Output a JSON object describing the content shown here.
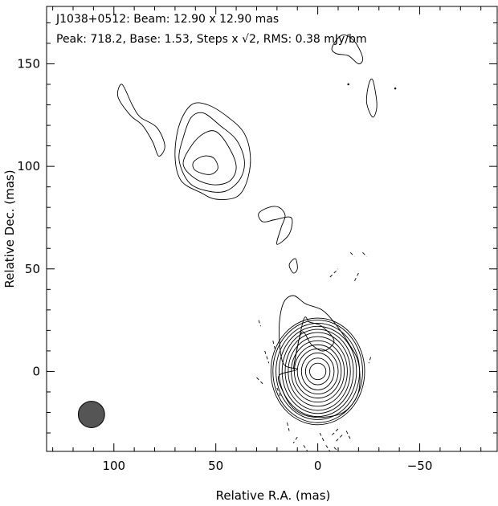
{
  "chart_data": {
    "type": "contour",
    "title_line1": "J1038+0512: Beam: 12.90 x 12.90 mas",
    "title_line2": "Peak: 718.2, Base: 1.53, Steps x √2, RMS: 0.38 mJy/bm",
    "xlabel": "Relative R.A. (mas)",
    "ylabel": "Relative Dec. (mas)",
    "x_axis_reversed": true,
    "xlim": [
      133,
      -88
    ],
    "ylim": [
      -39,
      178
    ],
    "x_ticks": [
      100,
      50,
      0,
      -50
    ],
    "x_tick_labels": [
      "100",
      "50",
      "0",
      "−50"
    ],
    "y_ticks": [
      0,
      50,
      100,
      150
    ],
    "y_tick_labels": [
      "0",
      "50",
      "100",
      "150"
    ],
    "x_minor_step": 10,
    "y_minor_step": 10,
    "peak_mJy_per_beam": 718.2,
    "base_contour_mJy_per_beam": 1.53,
    "contour_step_factor": "√2",
    "rms_mJy_per_beam": 0.38,
    "beam": {
      "major_mas": 12.9,
      "minor_mas": 12.9,
      "center_x_mas": 111,
      "center_y_mas": -21
    },
    "components": [
      {
        "name": "core",
        "center": [
          0,
          0
        ],
        "positive_levels": [
          {
            "rx": 4,
            "ry": 4
          },
          {
            "rx": 6,
            "ry": 6.5
          },
          {
            "rx": 8,
            "ry": 9
          },
          {
            "rx": 10,
            "ry": 11
          },
          {
            "rx": 11.5,
            "ry": 13
          },
          {
            "rx": 13,
            "ry": 15
          },
          {
            "rx": 14.5,
            "ry": 17
          },
          {
            "rx": 16,
            "ry": 19
          },
          {
            "rx": 17.5,
            "ry": 20.5
          },
          {
            "rx": 19,
            "ry": 22
          },
          {
            "rx": 20.5,
            "ry": 23.5
          },
          {
            "rx": 22,
            "ry": 25
          },
          {
            "rx": 23,
            "ry": 26
          }
        ],
        "extended_outline": [
          [
            10,
            1
          ],
          [
            17,
            4
          ],
          [
            19,
            20
          ],
          [
            17,
            33
          ],
          [
            12,
            37
          ],
          [
            6,
            33
          ],
          [
            -2,
            30
          ],
          [
            -8,
            24
          ],
          [
            -15,
            14
          ],
          [
            -20,
            4
          ],
          [
            -20,
            -10
          ],
          [
            -14,
            -19
          ],
          [
            -6,
            -22
          ],
          [
            4,
            -22
          ],
          [
            12,
            -18
          ],
          [
            17,
            -10
          ],
          [
            19,
            -2
          ]
        ],
        "inner_knot_outline": [
          [
            12,
            1
          ],
          [
            7,
            25
          ],
          [
            4,
            24
          ],
          [
            -2,
            22
          ],
          [
            -8,
            15
          ],
          [
            -3,
            10
          ],
          [
            3,
            13
          ],
          [
            8,
            19
          ]
        ]
      },
      {
        "name": "northern_lobe",
        "center": [
          53,
          102
        ],
        "outlines": [
          [
            [
              60,
              98
            ],
            [
              53,
              96
            ],
            [
              49,
              99
            ],
            [
              51,
              104
            ],
            [
              56,
              105
            ],
            [
              61,
              102
            ]
          ],
          [
            [
              66,
              101
            ],
            [
              60,
              94
            ],
            [
              51,
              91
            ],
            [
              43,
              93
            ],
            [
              40,
              100
            ],
            [
              44,
              110
            ],
            [
              50,
              117
            ],
            [
              56,
              116
            ],
            [
              62,
              110
            ]
          ],
          [
            [
              68,
              103
            ],
            [
              63,
              92
            ],
            [
              54,
              88
            ],
            [
              45,
              88
            ],
            [
              38,
              94
            ],
            [
              36,
              103
            ],
            [
              40,
              113
            ],
            [
              48,
              120
            ],
            [
              56,
              126
            ],
            [
              62,
              124
            ],
            [
              66,
              114
            ]
          ],
          [
            [
              70,
              105
            ],
            [
              67,
              93
            ],
            [
              57,
              87
            ],
            [
              50,
              84
            ],
            [
              40,
              85
            ],
            [
              35,
              92
            ],
            [
              33,
              104
            ],
            [
              36,
              116
            ],
            [
              44,
              124
            ],
            [
              54,
              130
            ],
            [
              62,
              130
            ],
            [
              68,
              120
            ]
          ]
        ]
      },
      {
        "name": "northwest_jet",
        "outlines": [
          [
            [
              96,
              140
            ],
            [
              91,
              130
            ],
            [
              87,
              124
            ],
            [
              79,
              119
            ],
            [
              75,
              110
            ],
            [
              78,
              105
            ],
            [
              81,
              112
            ],
            [
              86,
              120
            ],
            [
              92,
              125
            ],
            [
              98,
              134
            ]
          ]
        ]
      },
      {
        "name": "middle_knots",
        "outlines": [
          [
            [
              29,
              77
            ],
            [
              24,
              80
            ],
            [
              19,
              80
            ],
            [
              16,
              76
            ],
            [
              18,
              70
            ],
            [
              20,
              62
            ],
            [
              14,
              67
            ],
            [
              13,
              75
            ],
            [
              21,
              74
            ],
            [
              27,
              73
            ]
          ],
          [
            [
              11,
              55
            ],
            [
              10,
              50
            ],
            [
              12,
              48
            ],
            [
              14,
              52
            ]
          ]
        ]
      },
      {
        "name": "far_north",
        "outlines": [
          [
            [
              -7,
              158
            ],
            [
              -12,
              164
            ],
            [
              -18,
              161
            ],
            [
              -22,
              153
            ],
            [
              -20,
              150
            ],
            [
              -15,
              154
            ],
            [
              -9,
              155
            ]
          ],
          [
            [
              -27,
              142
            ],
            [
              -29,
              130
            ],
            [
              -27,
              124
            ],
            [
              -24,
              131
            ],
            [
              -25,
              140
            ]
          ]
        ],
        "dots": [
          [
            -15,
            140
          ],
          [
            -38,
            138
          ]
        ]
      }
    ],
    "negative_contours": [
      [
        [
          29,
          25
        ],
        [
          28,
          22
        ]
      ],
      [
        [
          26,
          10
        ],
        [
          24,
          4
        ]
      ],
      [
        [
          22,
          15
        ],
        [
          21,
          11
        ]
      ],
      [
        [
          30,
          -3
        ],
        [
          27,
          -6
        ]
      ],
      [
        [
          20,
          -8
        ],
        [
          18,
          -13
        ]
      ],
      [
        [
          -6,
          46
        ],
        [
          -10,
          50
        ]
      ],
      [
        [
          -16,
          58
        ],
        [
          -18,
          56
        ]
      ],
      [
        [
          -22,
          58
        ],
        [
          -24,
          56
        ]
      ],
      [
        [
          -20,
          48
        ],
        [
          -18,
          44
        ]
      ],
      [
        [
          -26,
          7
        ],
        [
          -25,
          4
        ]
      ],
      [
        [
          15,
          -25
        ],
        [
          14,
          -29
        ]
      ],
      [
        [
          10,
          -32
        ],
        [
          12,
          -35
        ]
      ],
      [
        [
          -10,
          -28
        ],
        [
          -7,
          -31
        ]
      ],
      [
        [
          -12,
          -31
        ],
        [
          -9,
          -34
        ]
      ],
      [
        [
          -14,
          -29
        ],
        [
          -16,
          -33
        ]
      ],
      [
        [
          -8,
          -37
        ],
        [
          -10,
          -39
        ]
      ],
      [
        [
          -4,
          -36
        ],
        [
          -6,
          -39
        ]
      ],
      [
        [
          -1,
          -30
        ],
        [
          -3,
          -34
        ]
      ],
      [
        [
          7,
          -36
        ],
        [
          5,
          -39
        ]
      ]
    ]
  }
}
